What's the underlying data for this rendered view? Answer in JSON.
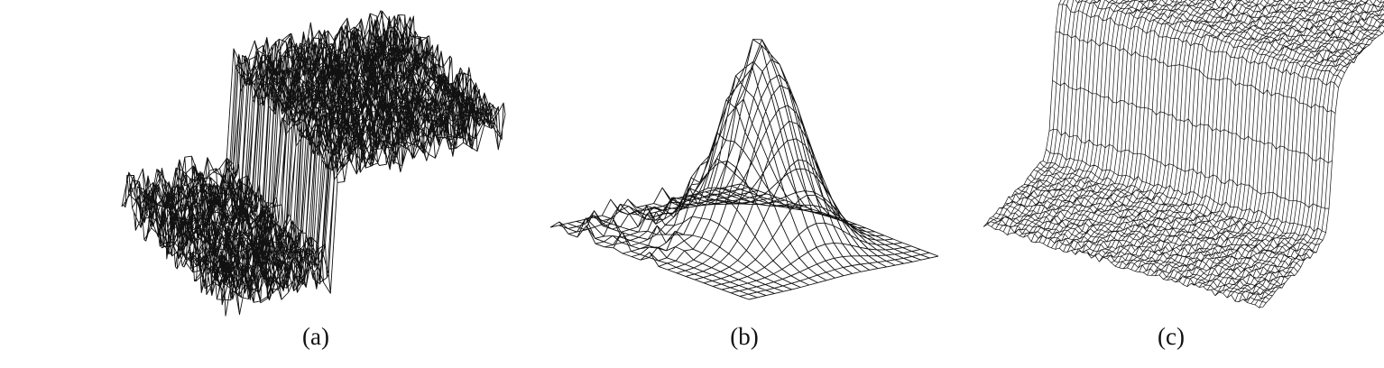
{
  "figure": {
    "panels": [
      {
        "caption": "(a)",
        "surface": "noisy-step-wireframe"
      },
      {
        "caption": "(b)",
        "surface": "gaussian-peak-wireframe"
      },
      {
        "caption": "(c)",
        "surface": "smooth-step-wireframe"
      }
    ],
    "colors": {
      "background": "#ffffff",
      "line": "#111111"
    }
  }
}
